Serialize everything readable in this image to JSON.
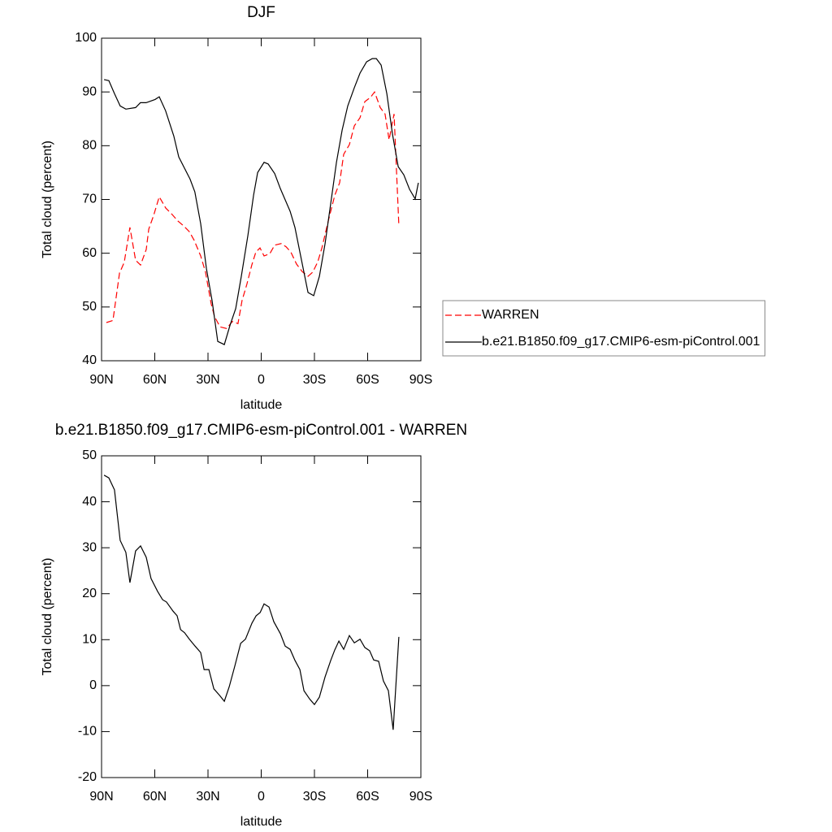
{
  "chart_data": [
    {
      "type": "line",
      "title": "DJF",
      "xlabel": "latitude",
      "ylabel": "Total cloud (percent)",
      "xlim": [
        90,
        -90
      ],
      "xticks": [
        {
          "value": 90,
          "label": "90N"
        },
        {
          "value": 60,
          "label": "60N"
        },
        {
          "value": 30,
          "label": "30N"
        },
        0,
        {
          "value": -30,
          "label": "30S"
        },
        {
          "value": -60,
          "label": "60S"
        },
        {
          "value": -90,
          "label": "90S"
        }
      ],
      "ylim": [
        40,
        100
      ],
      "yticks": [
        40,
        50,
        60,
        70,
        80,
        90,
        100
      ],
      "legend": "right",
      "series": [
        {
          "name": "WARREN",
          "color": "#ff0000",
          "dash": true,
          "x": [
            87.3,
            83.6,
            79.9,
            77.2,
            74.0,
            70.8,
            68.0,
            64.8,
            63.4,
            60.7,
            57.5,
            53.8,
            50.2,
            47.0,
            43.8,
            40.5,
            37.8,
            34.1,
            31.4,
            28.2,
            26.3,
            23.2,
            19.5,
            16.3,
            13.1,
            10.8,
            8.1,
            5.3,
            3.0,
            0.7,
            -1.6,
            -4.8,
            -7.6,
            -11.2,
            -14.0,
            -16.7,
            -19.9,
            -23.1,
            -26.4,
            -29.1,
            -31.9,
            -34.2,
            -37.8,
            -41.5,
            -44.2,
            -46.5,
            -49.7,
            -52.5,
            -55.7,
            -58.4,
            -61.6,
            -63.9,
            -67.1,
            -69.8,
            -72.1,
            -74.9,
            -77.6
          ],
          "values": [
            47.1,
            47.5,
            56.3,
            58.3,
            64.8,
            58.7,
            57.8,
            60.7,
            64.5,
            67.0,
            70.5,
            68.4,
            67.2,
            66.0,
            65.1,
            64.0,
            62.4,
            59.5,
            56.5,
            50.6,
            48.2,
            46.3,
            46.0,
            47.3,
            46.9,
            51.2,
            54.2,
            57.8,
            60.2,
            61.0,
            59.5,
            59.9,
            61.5,
            61.8,
            61.2,
            60.2,
            58.0,
            56.6,
            55.7,
            56.5,
            58.4,
            61.0,
            66.0,
            70.8,
            73.1,
            78.4,
            80.2,
            83.7,
            85.2,
            88.2,
            89.0,
            90.0,
            87.1,
            85.9,
            81.1,
            85.9,
            65.2
          ]
        },
        {
          "name": "b.e21.B1850.f09_g17.CMIP6-esm-piControl.001",
          "color": "#000000",
          "dash": false,
          "x": [
            88.6,
            85.9,
            82.7,
            79.5,
            76.3,
            70.8,
            68.1,
            64.9,
            59.8,
            57.5,
            53.9,
            49.3,
            46.5,
            40.1,
            37.4,
            34.1,
            30.9,
            27.7,
            24.5,
            20.8,
            17.6,
            14.4,
            11.2,
            7.5,
            4.3,
            2.0,
            -1.6,
            -3.9,
            -7.6,
            -10.8,
            -16.3,
            -19.0,
            -22.7,
            -26.4,
            -29.6,
            -32.8,
            -36.0,
            -39.2,
            -42.4,
            -45.6,
            -48.8,
            -52.5,
            -55.7,
            -59.4,
            -62.6,
            -64.9,
            -67.6,
            -70.8,
            -74.0,
            -77.2,
            -80.4,
            -83.6,
            -86.8,
            -88.6
          ],
          "values": [
            92.3,
            92.1,
            89.7,
            87.4,
            86.8,
            87.1,
            88.0,
            88.0,
            88.6,
            89.1,
            86.5,
            81.8,
            77.9,
            73.8,
            71.4,
            65.5,
            57.2,
            51.2,
            43.6,
            43.0,
            46.6,
            49.7,
            55.7,
            63.3,
            70.8,
            75.0,
            76.9,
            76.6,
            74.8,
            72.0,
            67.8,
            64.8,
            58.7,
            52.7,
            52.1,
            55.7,
            61.8,
            69.3,
            76.9,
            82.9,
            87.4,
            90.8,
            93.5,
            95.6,
            96.2,
            96.2,
            95.0,
            89.7,
            82.1,
            76.1,
            74.6,
            71.9,
            70.1,
            73.1
          ]
        }
      ]
    },
    {
      "type": "line",
      "title": "b.e21.B1850.f09_g17.CMIP6-esm-piControl.001 - WARREN",
      "xlabel": "latitude",
      "ylabel": "Total cloud (percent)",
      "xlim": [
        90,
        -90
      ],
      "xticks": [
        {
          "value": 90,
          "label": "90N"
        },
        {
          "value": 60,
          "label": "60N"
        },
        {
          "value": 30,
          "label": "30N"
        },
        0,
        {
          "value": -30,
          "label": "30S"
        },
        {
          "value": -60,
          "label": "60S"
        },
        {
          "value": -90,
          "label": "90S"
        }
      ],
      "ylim": [
        -20,
        50
      ],
      "yticks": [
        -20,
        -10,
        0,
        10,
        20,
        30,
        40,
        50
      ],
      "series": [
        {
          "color": "#000000",
          "dash": false,
          "x": [
            88.6,
            85.9,
            82.7,
            79.5,
            76.3,
            74.0,
            70.8,
            68.0,
            64.8,
            62.1,
            58.4,
            55.6,
            53.4,
            49.7,
            47.4,
            45.5,
            43.2,
            40.5,
            37.3,
            34.1,
            32.2,
            29.5,
            26.7,
            23.5,
            20.8,
            18.0,
            14.8,
            11.6,
            8.9,
            5.2,
            2.9,
            0.6,
            -1.6,
            -4.4,
            -7.1,
            -10.8,
            -13.5,
            -16.3,
            -19.0,
            -21.8,
            -24.1,
            -27.3,
            -30.0,
            -32.8,
            -36.0,
            -39.2,
            -41.5,
            -43.8,
            -46.5,
            -49.7,
            -52.5,
            -55.7,
            -58.4,
            -61.1,
            -63.4,
            -66.2,
            -68.9,
            -71.7,
            -74.4,
            -77.6
          ],
          "values": [
            45.8,
            45.2,
            42.6,
            31.6,
            29.0,
            22.4,
            29.3,
            30.4,
            27.9,
            23.3,
            20.5,
            18.7,
            18.2,
            16.2,
            15.2,
            12.2,
            11.5,
            10.1,
            8.6,
            7.2,
            3.5,
            3.5,
            -0.7,
            -2.1,
            -3.4,
            -0.2,
            4.4,
            9.2,
            10.1,
            13.6,
            15.2,
            15.9,
            17.8,
            17.1,
            13.9,
            11.3,
            8.6,
            7.9,
            5.5,
            3.5,
            -1.1,
            -2.9,
            -4.1,
            -2.5,
            1.9,
            5.5,
            7.8,
            9.7,
            7.9,
            10.9,
            9.3,
            10.1,
            8.3,
            7.6,
            5.6,
            5.3,
            1.0,
            -1.1,
            -9.6,
            10.6
          ]
        }
      ]
    }
  ]
}
